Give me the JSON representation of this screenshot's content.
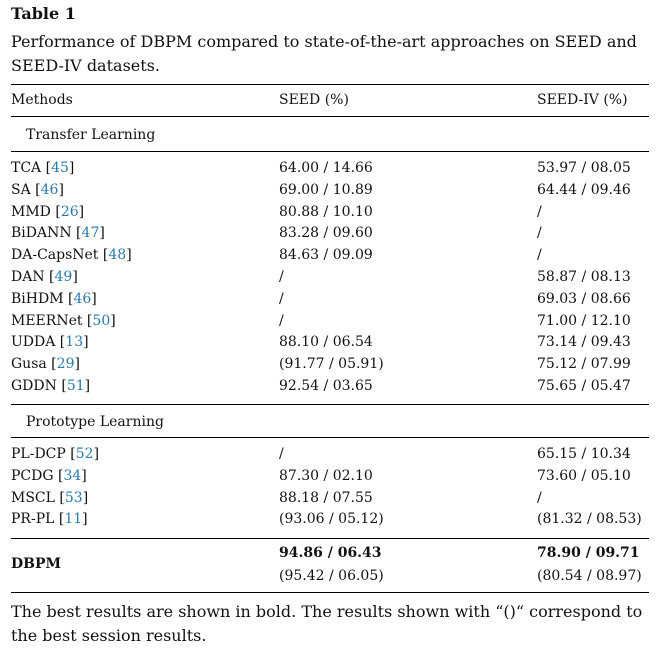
{
  "table_label": "Table 1",
  "caption": "Performance of DBPM compared to state-of-the-art approaches on SEED and SEED-IV datasets.",
  "headers": {
    "methods": "Methods",
    "seed": "SEED (%)",
    "seediv": "SEED-IV (%)"
  },
  "sections": {
    "transfer": "Transfer Learning",
    "prototype": "Prototype Learning"
  },
  "rows": [
    {
      "name": "TCA",
      "ref": "45",
      "seed": "64.00 / 14.66",
      "seediv": "53.97 / 08.05"
    },
    {
      "name": "SA",
      "ref": "46",
      "seed": "69.00 / 10.89",
      "seediv": "64.44 / 09.46"
    },
    {
      "name": "MMD",
      "ref": "26",
      "seed": "80.88 / 10.10",
      "seediv": "/"
    },
    {
      "name": "BiDANN",
      "ref": "47",
      "seed": "83.28 / 09.60",
      "seediv": "/"
    },
    {
      "name": "DA-CapsNet",
      "ref": "48",
      "seed": "84.63 / 09.09",
      "seediv": "/"
    },
    {
      "name": "DAN",
      "ref": "49",
      "seed": "/",
      "seediv": "58.87 / 08.13"
    },
    {
      "name": "BiHDM",
      "ref": "46",
      "seed": "/",
      "seediv": "69.03 / 08.66"
    },
    {
      "name": "MEERNet",
      "ref": "50",
      "seed": "/",
      "seediv": "71.00 / 12.10"
    },
    {
      "name": "UDDA",
      "ref": "13",
      "seed": "88.10 / 06.54",
      "seediv": "73.14 / 09.43"
    },
    {
      "name": "Gusa",
      "ref": "29",
      "seed": "(91.77 / 05.91)",
      "seediv": "75.12 / 07.99"
    },
    {
      "name": "GDDN",
      "ref": "51",
      "seed": "92.54 / 03.65",
      "seediv": "75.65 / 05.47"
    }
  ],
  "proto_rows": [
    {
      "name": "PL-DCP",
      "ref": "52",
      "seed": "/",
      "seediv": "65.15 / 10.34"
    },
    {
      "name": "PCDG",
      "ref": "34",
      "seed": "87.30 / 02.10",
      "seediv": "73.60 / 05.10"
    },
    {
      "name": "MSCL",
      "ref": "53",
      "seed": "88.18 / 07.55",
      "seediv": "/"
    },
    {
      "name": "PR-PL",
      "ref": "11",
      "seed": "(93.06 / 05.12)",
      "seediv": "(81.32 / 08.53)"
    }
  ],
  "dbpm": {
    "name": "DBPM",
    "seed_best": "94.86 / 06.43",
    "seediv_best": "78.90 / 09.71",
    "seed_session": "(95.42 / 06.05)",
    "seediv_session": "(80.54 / 08.97)"
  },
  "footnote": "The best results are shown in bold. The results shown with “()“ correspond to the best session results."
}
